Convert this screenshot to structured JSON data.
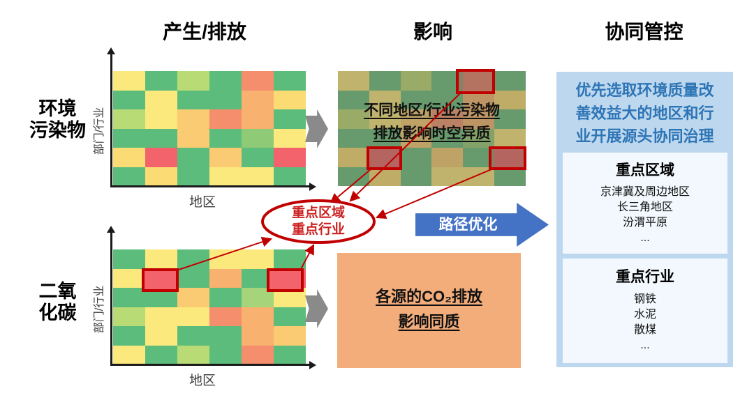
{
  "headers": {
    "produce": "产生/排放",
    "impact": "影响",
    "control": "协同管控"
  },
  "row_labels": {
    "pollutant": [
      "环境",
      "污染物"
    ],
    "co2": [
      "二氧",
      "化碳"
    ]
  },
  "axes": {
    "y_label": "部门/行业",
    "x_label": "地区"
  },
  "heatmaps": {
    "pollutant": {
      "grid": [
        [
          "#FCE97E",
          "#5CBC7C",
          "#B9DB76",
          "#5CBC7C",
          "#F58E6D",
          "#5CBC7C"
        ],
        [
          "#5CBC7C",
          "#FCE97E",
          "#5CBC7C",
          "#5CBC7C",
          "#F8B16E",
          "#FBDC74"
        ],
        [
          "#B9DB76",
          "#FCE97E",
          "#FACB72",
          "#F58E6D",
          "#F8B16E",
          "#5CBC7C"
        ],
        [
          "#5CBC7C",
          "#5CBC7C",
          "#FACB72",
          "#5CBC7C",
          "#8FCB77",
          "#FCE97E"
        ],
        [
          "#FBDC74",
          "#F2636C",
          "#5CBC7C",
          "#FACB72",
          "#5CBC7C",
          "#F2636C"
        ],
        [
          "#5CBC7C",
          "#FBDC74",
          "#5CBC7C",
          "#FCE97E",
          "#FCE97E",
          "#5CBC7C"
        ]
      ]
    },
    "co2": {
      "grid": [
        [
          "#5CBC7C",
          "#FCE97E",
          "#5CBC7C",
          "#FCE97E",
          "#FCE97E",
          "#5CBC7C"
        ],
        [
          "#FCE97E",
          "#F2636C",
          "#5CBC7C",
          "#F8B16E",
          "#5CBC7C",
          "#F2636C"
        ],
        [
          "#5CBC7C",
          "#5CBC7C",
          "#FACB72",
          "#5CBC7C",
          "#A5D47A",
          "#FCE97E"
        ],
        [
          "#B9DB76",
          "#FCE97E",
          "#FCE97E",
          "#F58E6D",
          "#F8B16E",
          "#5CBC7C"
        ],
        [
          "#5CBC7C",
          "#FCE97E",
          "#5CBC7C",
          "#5CBC7C",
          "#F8B16E",
          "#FACB72"
        ],
        [
          "#FCE97E",
          "#5CBC7C",
          "#B9DB76",
          "#5CBC7C",
          "#F58E6D",
          "#5CBC7C"
        ]
      ]
    },
    "impact_note_lines": [
      "不同地区/行业污染物",
      "排放影响时空异质"
    ]
  },
  "ellipse": {
    "lines": [
      "重点区域",
      "重点行业"
    ]
  },
  "path_arrow": {
    "label": "路径优化"
  },
  "co2_box": {
    "lines": [
      "各源的CO₂排放",
      "影响同质"
    ]
  },
  "panel": {
    "headline_lines": [
      "优先选取环境质量改",
      "善效益大的地区和行",
      "业开展源头协同治理"
    ],
    "regions": {
      "title": "重点区域",
      "items": [
        "京津冀及周边地区",
        "长三角地区",
        "汾渭平原",
        "..."
      ]
    },
    "industries": {
      "title": "重点行业",
      "items": [
        "钢铁",
        "水泥",
        "散煤",
        "..."
      ]
    }
  },
  "colors": {
    "accent_red": "#C00000",
    "accent_blue": "#4472C4",
    "panel_blue": "#BDD7EE",
    "headline_blue": "#2E75B6",
    "orange_box": "#F2AD7B"
  }
}
